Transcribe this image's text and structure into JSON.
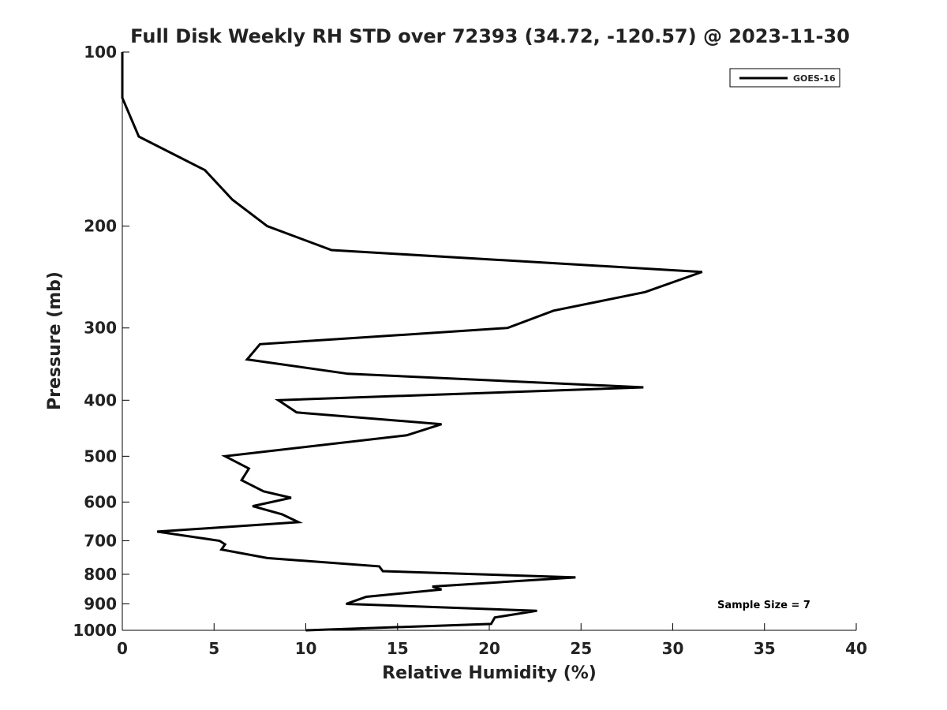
{
  "chart_data": {
    "type": "line",
    "title": "Full Disk Weekly RH STD over 72393 (34.72, -120.57) @ 2023-11-30",
    "xlabel": "Relative Humidity (%)",
    "ylabel": "Pressure (mb)",
    "xlim": [
      0,
      40
    ],
    "ylim": [
      1000,
      100
    ],
    "yscale": "log",
    "xticks": [
      0,
      5,
      10,
      15,
      20,
      25,
      30,
      35,
      40
    ],
    "yticks": [
      100,
      200,
      300,
      400,
      500,
      600,
      700,
      800,
      900,
      1000
    ],
    "grid": false,
    "legend": {
      "position": "top-right",
      "entries": [
        "GOES-16"
      ]
    },
    "annotation": "Sample Size = 7",
    "series": [
      {
        "name": "GOES-16",
        "color": "#000000",
        "points": [
          [
            0.0,
            100
          ],
          [
            0.0,
            120
          ],
          [
            0.9,
            140
          ],
          [
            4.5,
            160
          ],
          [
            6.0,
            180
          ],
          [
            7.9,
            200
          ],
          [
            11.4,
            220
          ],
          [
            31.6,
            240
          ],
          [
            28.5,
            260
          ],
          [
            23.5,
            280
          ],
          [
            21.0,
            300
          ],
          [
            7.5,
            320
          ],
          [
            6.8,
            340
          ],
          [
            12.3,
            360
          ],
          [
            28.4,
            380
          ],
          [
            8.5,
            400
          ],
          [
            9.5,
            420
          ],
          [
            17.4,
            440
          ],
          [
            15.5,
            460
          ],
          [
            5.6,
            500
          ],
          [
            6.9,
            525
          ],
          [
            6.5,
            550
          ],
          [
            7.7,
            575
          ],
          [
            9.2,
            590
          ],
          [
            7.1,
            610
          ],
          [
            8.7,
            630
          ],
          [
            9.6,
            650
          ],
          [
            1.9,
            675
          ],
          [
            5.3,
            700
          ],
          [
            5.6,
            710
          ],
          [
            5.4,
            725
          ],
          [
            7.9,
            750
          ],
          [
            14.0,
            775
          ],
          [
            14.2,
            790
          ],
          [
            24.7,
            810
          ],
          [
            16.9,
            840
          ],
          [
            17.4,
            850
          ],
          [
            13.3,
            875
          ],
          [
            12.2,
            900
          ],
          [
            22.6,
            925
          ],
          [
            20.3,
            950
          ],
          [
            20.1,
            975
          ],
          [
            10.0,
            1000
          ]
        ]
      }
    ]
  }
}
